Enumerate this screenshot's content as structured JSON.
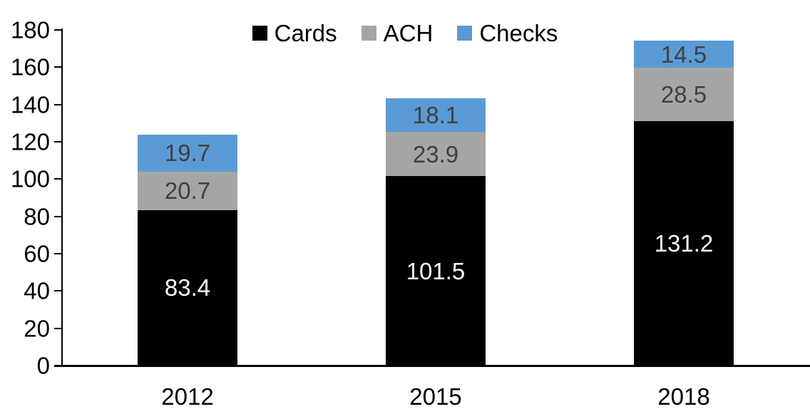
{
  "chart_data": {
    "type": "bar",
    "stacked": true,
    "categories": [
      "2012",
      "2015",
      "2018"
    ],
    "series": [
      {
        "name": "Cards",
        "color": "#000000",
        "label_color": "#ffffff",
        "values": [
          83.4,
          101.5,
          131.2
        ]
      },
      {
        "name": "ACH",
        "color": "#a5a5a5",
        "label_color": "#404040",
        "values": [
          20.7,
          23.9,
          28.5
        ]
      },
      {
        "name": "Checks",
        "color": "#5b9bd5",
        "label_color": "#404040",
        "values": [
          19.7,
          18.1,
          14.5
        ]
      }
    ],
    "title": "",
    "xlabel": "",
    "ylabel": "",
    "ylim": [
      0,
      180
    ],
    "ytick_interval": 20,
    "yticks": [
      0,
      20,
      40,
      60,
      80,
      100,
      120,
      140,
      160,
      180
    ],
    "grid": false,
    "legend_position": "top",
    "data_labels": true,
    "axis_color": "#000000",
    "background": "#ffffff"
  }
}
